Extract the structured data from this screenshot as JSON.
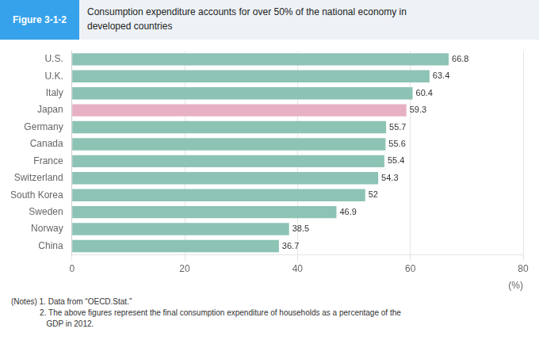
{
  "chart_data": {
    "type": "bar",
    "orientation": "horizontal",
    "title": [
      "Consumption expenditure accounts for over 50% of the national economy in",
      "developed countries"
    ],
    "subtitle": "Figure 3-1-2",
    "categories": [
      "U.S.",
      "U.K.",
      "Italy",
      "Japan",
      "Germany",
      "Canada",
      "France",
      "Switzerland",
      "South Korea",
      "Sweden",
      "Norway",
      "China"
    ],
    "values": [
      66.8,
      63.4,
      60.4,
      59.3,
      55.7,
      55.6,
      55.4,
      54.3,
      52.0,
      46.9,
      38.5,
      36.7
    ],
    "colors": [
      "#8dc3b5",
      "#8dc3b5",
      "#8dc3b5",
      "#e8b0c4",
      "#8dc3b5",
      "#8dc3b5",
      "#8dc3b5",
      "#8dc3b5",
      "#8dc3b5",
      "#8dc3b5",
      "#8dc3b5",
      "#8dc3b5"
    ],
    "xlabel": "(%)",
    "xlim": [
      0,
      80
    ],
    "xticks": [
      0,
      20,
      40,
      60,
      80
    ],
    "grid": true,
    "data_labels": true,
    "annotations": [
      "(Notes) 1. Data from “OECD.Stat.”",
      "             2. The above figures represent the final consumption expenditure of households as a percentage of the",
      "                GDP in 2012."
    ]
  }
}
